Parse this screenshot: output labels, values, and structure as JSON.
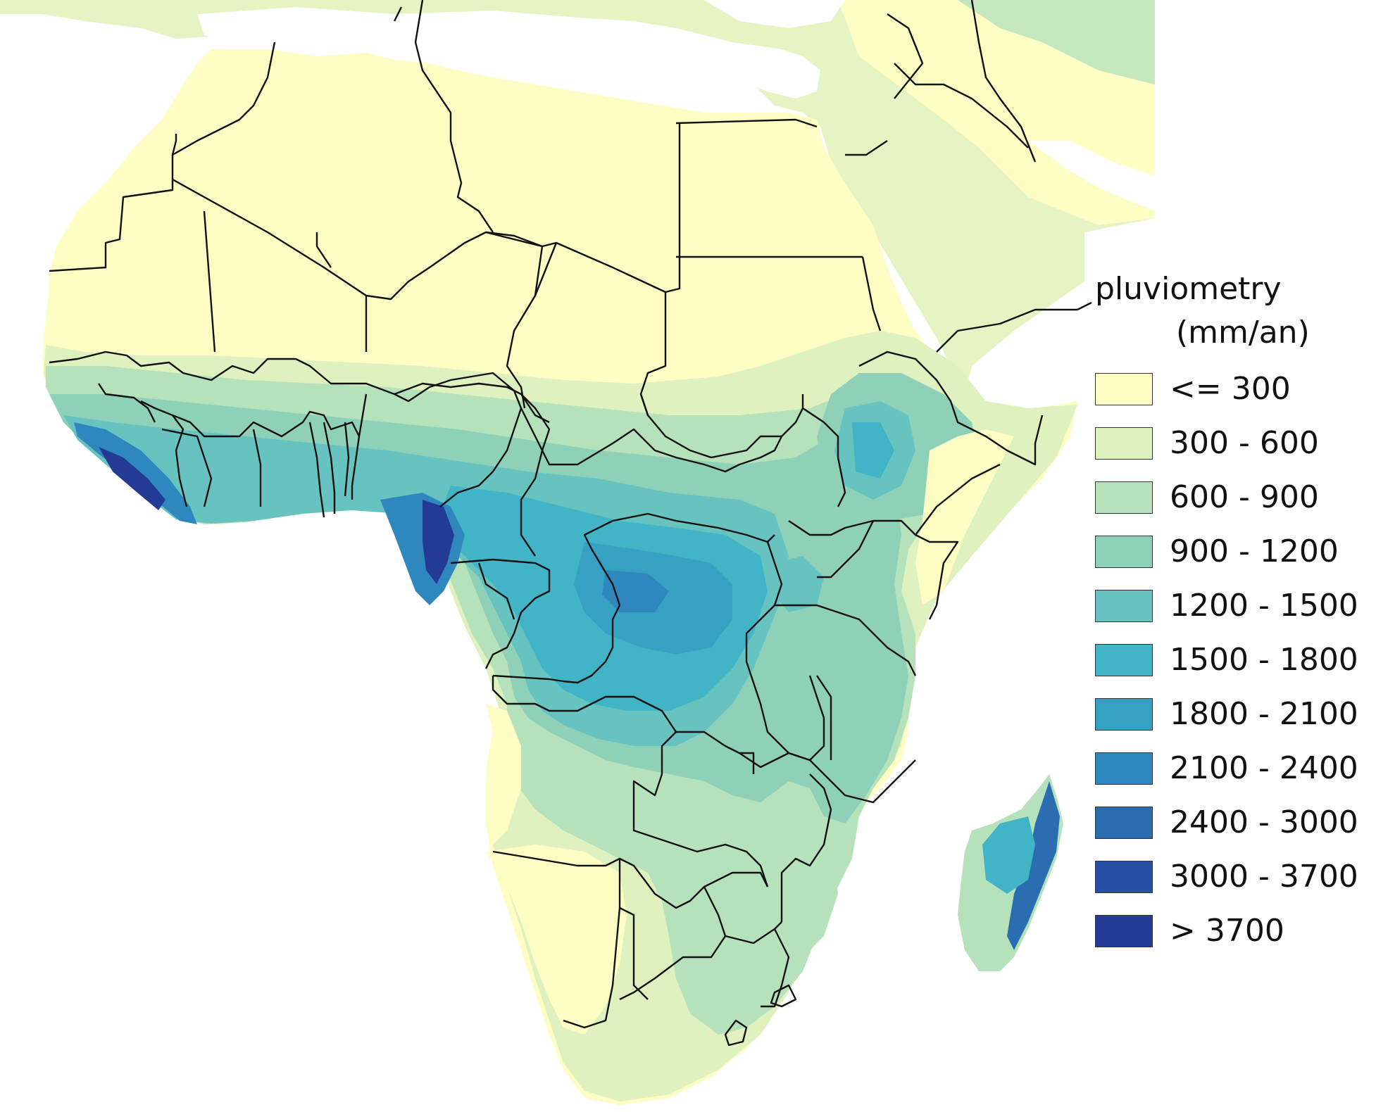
{
  "legend": {
    "title": "pluviometry",
    "subtitle": "(mm/an)",
    "items": [
      {
        "label": "<= 300",
        "color": "#fefdc4"
      },
      {
        "label": "300 - 600",
        "color": "#def1bf"
      },
      {
        "label": "600 - 900",
        "color": "#b5e2bb"
      },
      {
        "label": "900 - 1200",
        "color": "#8fd1b8"
      },
      {
        "label": "1200 - 1500",
        "color": "#67c3bf"
      },
      {
        "label": "1500 - 1800",
        "color": "#41b5c7"
      },
      {
        "label": "1800 - 2100",
        "color": "#37a1c4"
      },
      {
        "label": "2100 - 2400",
        "color": "#2e88bd"
      },
      {
        "label": "2400 - 3000",
        "color": "#2a6db1"
      },
      {
        "label": "3000 - 3700",
        "color": "#2650a4"
      },
      {
        "label": "> 3700",
        "color": "#243b96"
      }
    ]
  },
  "map": {
    "borders_color": "#111111",
    "ocean_color": "#ffffff"
  }
}
